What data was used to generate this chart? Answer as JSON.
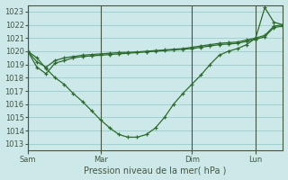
{
  "title": "Pression niveau de la mer( hPa )",
  "ylabel_values": [
    1013,
    1014,
    1015,
    1016,
    1017,
    1018,
    1019,
    1020,
    1021,
    1022,
    1023
  ],
  "ylim": [
    1012.5,
    1023.5
  ],
  "xtick_labels": [
    "Sam",
    "Mar",
    "Dim",
    "Lun"
  ],
  "background_color": "#cce8e8",
  "grid_color": "#99cccc",
  "line_color": "#2d6a2d",
  "series_jagged": [
    1020.0,
    1019.5,
    1018.7,
    1018.0,
    1017.5,
    1016.8,
    1016.2,
    1015.5,
    1014.8,
    1014.2,
    1013.7,
    1013.5,
    1013.5,
    1013.7,
    1014.2,
    1015.0,
    1016.0,
    1016.8,
    1017.5,
    1018.2,
    1019.0,
    1019.7,
    1020.0,
    1020.2,
    1020.5,
    1021.0,
    1023.3,
    1022.2,
    1022.0
  ],
  "series_flat1": [
    1020.0,
    1019.2,
    1018.8,
    1019.3,
    1019.5,
    1019.6,
    1019.7,
    1019.75,
    1019.8,
    1019.85,
    1019.9,
    1019.92,
    1019.95,
    1020.0,
    1020.05,
    1020.1,
    1020.15,
    1020.2,
    1020.3,
    1020.4,
    1020.5,
    1020.6,
    1020.65,
    1020.7,
    1020.85,
    1021.0,
    1021.2,
    1021.9,
    1022.0
  ],
  "series_flat2": [
    1020.0,
    1018.8,
    1018.3,
    1019.1,
    1019.3,
    1019.5,
    1019.6,
    1019.65,
    1019.7,
    1019.75,
    1019.8,
    1019.85,
    1019.9,
    1019.95,
    1020.0,
    1020.05,
    1020.1,
    1020.15,
    1020.2,
    1020.3,
    1020.4,
    1020.5,
    1020.55,
    1020.6,
    1020.75,
    1020.9,
    1021.1,
    1021.8,
    1021.9
  ],
  "xtick_positions": [
    0,
    8,
    18,
    25
  ],
  "xlim": [
    0,
    28
  ],
  "n_points": 29,
  "vline_color": "#445544",
  "title_fontsize": 7,
  "tick_fontsize": 6
}
